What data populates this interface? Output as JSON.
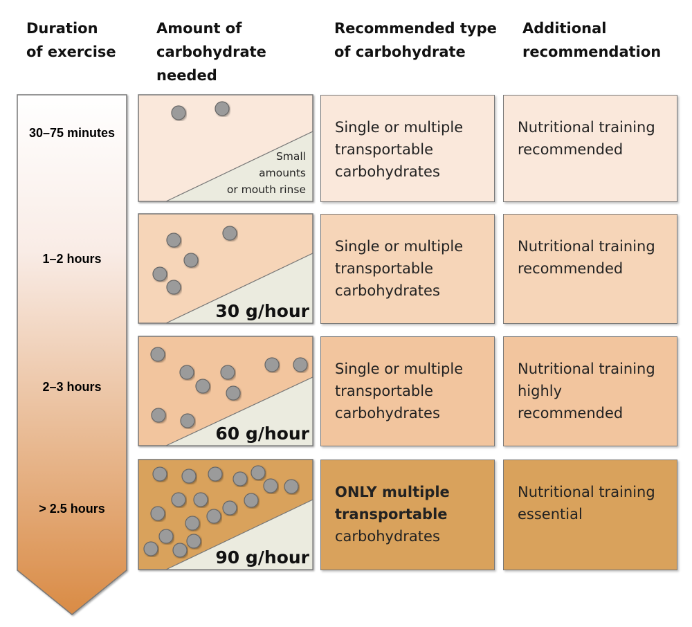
{
  "headers": {
    "duration": "Duration\nof exercise",
    "amount": "Amount of\ncarbohydrate\nneeded",
    "type": "Recommended type\nof carbohydrate",
    "additional": "Additional\nrecommendation"
  },
  "rows": [
    {
      "duration": "30–75 minutes",
      "amount_lines": [
        "Small",
        "amounts",
        "or mouth rinse"
      ],
      "type_bold": "",
      "type": "Single or multiple transportable carbohydrates",
      "additional": "Nutritional training recommended",
      "fill": "#fae8db"
    },
    {
      "duration": "1–2 hours",
      "amount": "30 g/hour",
      "type_bold": "",
      "type": "Single or multiple transportable carbohydrates",
      "additional": "Nutritional training recommended",
      "fill": "#f6d5b8"
    },
    {
      "duration": "2–3 hours",
      "amount": "60 g/hour",
      "type_bold": "",
      "type": "Single or multiple transportable carbohydrates",
      "additional": "Nutritional training highly recommended",
      "fill": "#f2c59e"
    },
    {
      "duration": "> 2.5 hours",
      "amount": "90 g/hour",
      "type_bold": "ONLY multiple transportable",
      "type": "carbohydrates",
      "additional": "Nutritional training essential",
      "fill": "#d9a25c"
    }
  ],
  "colors": {
    "arrow_top": "#ffffff",
    "arrow_bottom": "#d98b45",
    "wedge": "#ebebdf",
    "particle": "#9b9b9b",
    "border": "#777777"
  }
}
